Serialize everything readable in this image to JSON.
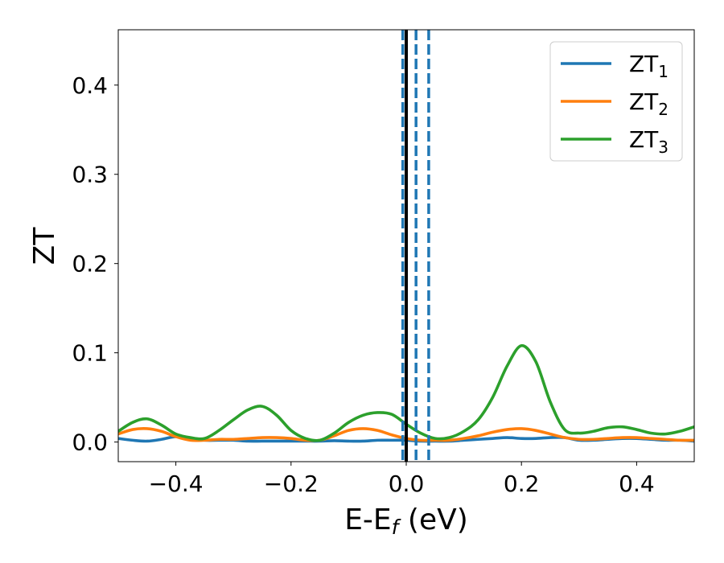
{
  "chart_data": {
    "type": "line",
    "xlabel_base": "E-E",
    "xlabel_sub": "f",
    "xlabel_unit": " (eV)",
    "ylabel": "ZT",
    "xlim": [
      -0.5,
      0.5
    ],
    "ylim": [
      -0.022,
      0.462
    ],
    "xticks": [
      -0.4,
      -0.2,
      0.0,
      0.2,
      0.4
    ],
    "xtick_labels": [
      "−0.4",
      "−0.2",
      "0.0",
      "0.2",
      "0.4"
    ],
    "yticks": [
      0.0,
      0.1,
      0.2,
      0.3,
      0.4
    ],
    "ytick_labels": [
      "0.0",
      "0.1",
      "0.2",
      "0.3",
      "0.4"
    ],
    "grid": false,
    "legend_position": "top-right",
    "vlines": [
      {
        "x": -0.006,
        "color": "#1f77b4",
        "style": "dashed"
      },
      {
        "x": 0.017,
        "color": "#1f77b4",
        "style": "dashed"
      },
      {
        "x": 0.039,
        "color": "#1f77b4",
        "style": "dashed"
      },
      {
        "x": 0.0,
        "color": "#000000",
        "style": "solid"
      }
    ],
    "x": [
      -0.5,
      -0.475,
      -0.45,
      -0.425,
      -0.4,
      -0.375,
      -0.35,
      -0.325,
      -0.3,
      -0.275,
      -0.25,
      -0.225,
      -0.2,
      -0.175,
      -0.15,
      -0.125,
      -0.1,
      -0.075,
      -0.05,
      -0.025,
      0.0,
      0.025,
      0.05,
      0.075,
      0.1,
      0.125,
      0.15,
      0.175,
      0.2,
      0.225,
      0.25,
      0.275,
      0.3,
      0.325,
      0.35,
      0.375,
      0.4,
      0.425,
      0.45,
      0.475,
      0.5
    ],
    "series": [
      {
        "name": "ZT",
        "sub": "1",
        "color": "#1f77b4",
        "values": [
          0.004,
          0.002,
          0.001,
          0.003,
          0.006,
          0.004,
          0.002,
          0.002,
          0.002,
          0.001,
          0.001,
          0.001,
          0.001,
          0.001,
          0.001,
          0.0015,
          0.001,
          0.001,
          0.002,
          0.002,
          0.002,
          0.001,
          0.001,
          0.001,
          0.002,
          0.003,
          0.004,
          0.005,
          0.004,
          0.004,
          0.005,
          0.005,
          0.002,
          0.002,
          0.003,
          0.004,
          0.004,
          0.003,
          0.002,
          0.002,
          0.001
        ]
      },
      {
        "name": "ZT",
        "sub": "2",
        "color": "#ff7f0e",
        "values": [
          0.009,
          0.014,
          0.015,
          0.012,
          0.006,
          0.002,
          0.002,
          0.003,
          0.003,
          0.004,
          0.005,
          0.005,
          0.004,
          0.002,
          0.002,
          0.007,
          0.013,
          0.015,
          0.013,
          0.008,
          0.004,
          0.002,
          0.002,
          0.002,
          0.004,
          0.007,
          0.011,
          0.014,
          0.015,
          0.013,
          0.009,
          0.005,
          0.003,
          0.003,
          0.004,
          0.005,
          0.005,
          0.004,
          0.003,
          0.002,
          0.002
        ]
      },
      {
        "name": "ZT",
        "sub": "3",
        "color": "#2ca02c",
        "values": [
          0.012,
          0.022,
          0.026,
          0.019,
          0.009,
          0.005,
          0.004,
          0.013,
          0.025,
          0.036,
          0.04,
          0.03,
          0.013,
          0.004,
          0.002,
          0.01,
          0.022,
          0.03,
          0.033,
          0.031,
          0.02,
          0.01,
          0.004,
          0.005,
          0.012,
          0.025,
          0.05,
          0.085,
          0.108,
          0.09,
          0.045,
          0.014,
          0.01,
          0.012,
          0.016,
          0.017,
          0.014,
          0.01,
          0.009,
          0.012,
          0.017
        ]
      }
    ]
  }
}
